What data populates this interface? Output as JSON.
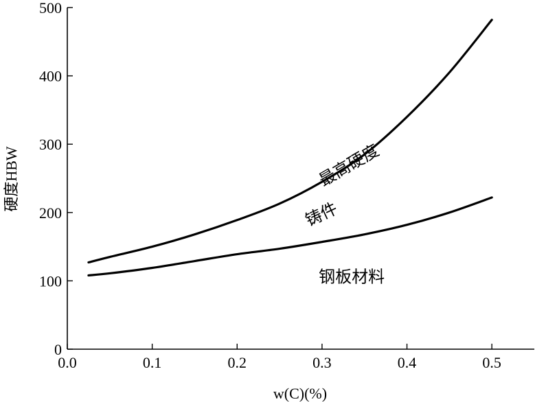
{
  "chart_data": {
    "type": "line",
    "xlabel": "w(C)(%)",
    "ylabel": "硬度HBW",
    "xlim": [
      0.0,
      0.55
    ],
    "ylim": [
      0,
      500
    ],
    "x_ticks": [
      0.0,
      0.1,
      0.2,
      0.3,
      0.4,
      0.5
    ],
    "x_tick_labels": [
      "0.0",
      "0.1",
      "0.2",
      "0.3",
      "0.4",
      "0.5"
    ],
    "y_ticks": [
      0,
      100,
      200,
      300,
      400,
      500
    ],
    "y_tick_labels": [
      "0",
      "100",
      "200",
      "300",
      "400",
      "500"
    ],
    "grid": false,
    "series": [
      {
        "x": [
          0.025,
          0.05,
          0.1,
          0.15,
          0.2,
          0.25,
          0.3,
          0.35,
          0.4,
          0.45,
          0.5
        ],
        "values": [
          127,
          135,
          150,
          168,
          189,
          213,
          245,
          285,
          340,
          405,
          482
        ]
      },
      {
        "x": [
          0.025,
          0.05,
          0.1,
          0.15,
          0.2,
          0.25,
          0.3,
          0.35,
          0.4,
          0.45,
          0.5
        ],
        "values": [
          108,
          111,
          119,
          129,
          139,
          147,
          157,
          168,
          182,
          200,
          222
        ]
      }
    ],
    "annotations": [
      {
        "text": "最高硬度",
        "x": 0.335,
        "y": 262,
        "rotate": -30
      },
      {
        "text": "铸件",
        "x": 0.302,
        "y": 190,
        "rotate": -25
      },
      {
        "text": "钢板材料",
        "x": 0.335,
        "y": 98,
        "rotate": 0
      }
    ]
  }
}
